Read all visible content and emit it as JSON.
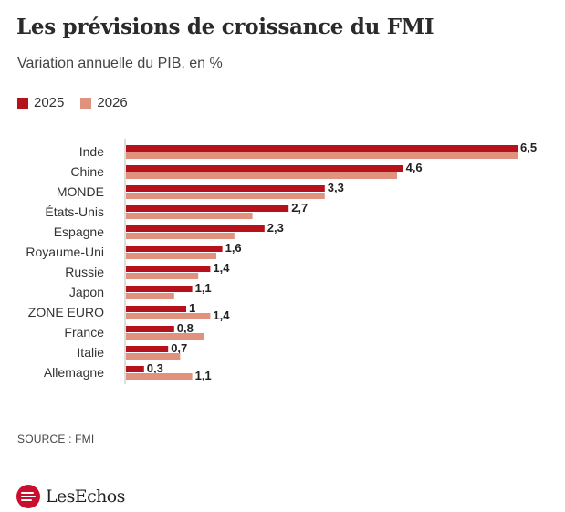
{
  "header": {
    "title": "Les prévisions de croissance du FMI",
    "subtitle": "Variation annuelle du PIB, en %"
  },
  "legend": [
    {
      "label": "2025",
      "color": "#b5121b"
    },
    {
      "label": "2026",
      "color": "#e0927f"
    }
  ],
  "chart_data": {
    "type": "bar",
    "orientation": "horizontal",
    "categories": [
      "Inde",
      "Chine",
      "MONDE",
      "États-Unis",
      "Espagne",
      "Royaume-Uni",
      "Russie",
      "Japon",
      "ZONE EURO",
      "France",
      "Italie",
      "Allemagne"
    ],
    "series": [
      {
        "name": "2025",
        "color": "#b5121b",
        "values": [
          6.5,
          4.6,
          3.3,
          2.7,
          2.3,
          1.6,
          1.4,
          1.1,
          1.0,
          0.8,
          0.7,
          0.3
        ],
        "labels": [
          "6,5",
          "4,6",
          "3,3",
          "2,7",
          "2,3",
          "1,6",
          "1,4",
          "1,1",
          "1",
          "0,8",
          "0,7",
          "0,3"
        ]
      },
      {
        "name": "2026",
        "color": "#e0927f",
        "values": [
          6.5,
          4.5,
          3.3,
          2.1,
          1.8,
          1.5,
          1.2,
          0.8,
          1.4,
          1.3,
          0.9,
          1.1
        ],
        "labels": [
          "",
          "",
          "",
          "",
          "",
          "",
          "",
          "",
          "1,4",
          "",
          "",
          "1,1"
        ]
      }
    ],
    "xlim": [
      0,
      6.5
    ],
    "grid": false,
    "legend_position": "top-left"
  },
  "footer": {
    "source": "SOURCE : FMI",
    "logo_text": "LesEchos"
  }
}
